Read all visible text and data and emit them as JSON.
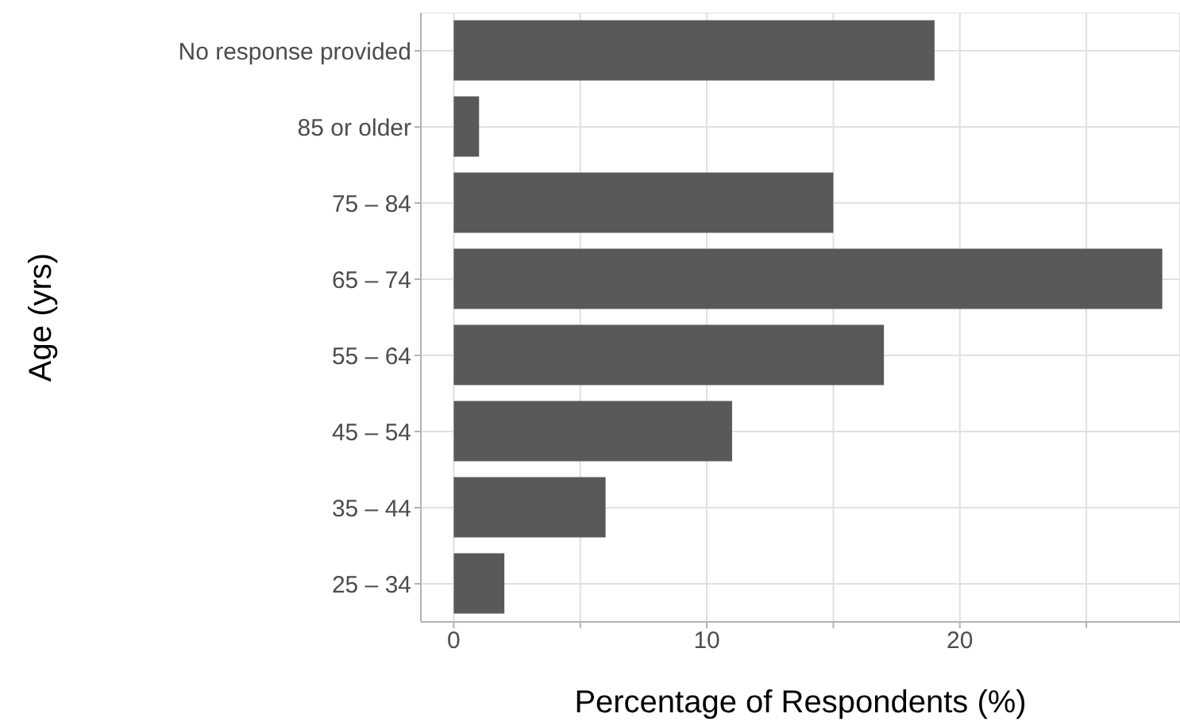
{
  "chart_data": {
    "type": "bar",
    "orientation": "horizontal",
    "xlabel": "Percentage of Respondents (%)",
    "ylabel": "Age (yrs)",
    "categories": [
      "No response provided",
      "85 or older",
      "75 – 84",
      "65 – 74",
      "55 – 64",
      "45 – 54",
      "35 – 44",
      "25 – 34"
    ],
    "values": [
      19,
      1,
      15,
      28,
      17,
      11,
      6,
      2
    ],
    "color": "#595959",
    "xlim": [
      -1.3,
      28.7
    ],
    "xticks": [
      0,
      {
        "value": 5,
        "label": null
      },
      10,
      {
        "value": 15,
        "label": null
      },
      20,
      {
        "value": 25,
        "label": null
      }
    ],
    "grid": true
  }
}
